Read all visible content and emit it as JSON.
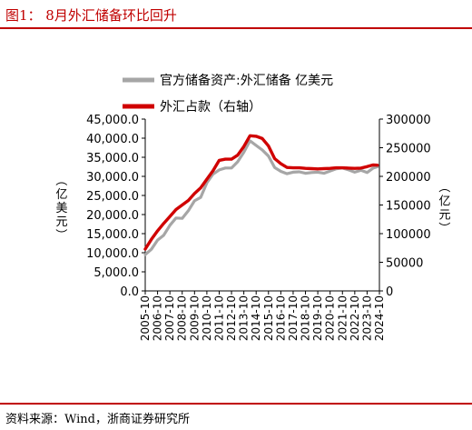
{
  "figure": {
    "title": "图1：  8月外汇储备环比回升",
    "source": "资料来源：Wind，浙商证券研究所"
  },
  "colors": {
    "accent": "#c00000",
    "reserves": "#a6a6a6",
    "position": "#d00000"
  },
  "chart_data": {
    "type": "line",
    "title": "",
    "legend_placement": "top",
    "grid": false,
    "x_ticks": [
      "2005-10",
      "2006-10",
      "2007-10",
      "2008-10",
      "2009-10",
      "2010-10",
      "2011-10",
      "2012-10",
      "2013-10",
      "2014-10",
      "2015-10",
      "2016-10",
      "2017-10",
      "2018-10",
      "2019-10",
      "2020-10",
      "2021-10",
      "2022-10",
      "2023-10",
      "2024-10"
    ],
    "x": [
      "2005-10",
      "2006-04",
      "2006-10",
      "2007-04",
      "2007-10",
      "2008-04",
      "2008-10",
      "2009-04",
      "2009-10",
      "2010-04",
      "2010-10",
      "2011-04",
      "2011-10",
      "2012-04",
      "2012-10",
      "2013-04",
      "2013-10",
      "2014-04",
      "2014-10",
      "2015-04",
      "2015-10",
      "2016-04",
      "2016-10",
      "2017-04",
      "2017-10",
      "2018-04",
      "2018-10",
      "2019-04",
      "2019-10",
      "2020-04",
      "2020-10",
      "2021-04",
      "2021-10",
      "2022-04",
      "2022-10",
      "2023-04",
      "2023-10",
      "2024-04",
      "2024-08"
    ],
    "left_axis": {
      "label": "（亿美元）",
      "ylim": [
        0,
        45000
      ],
      "ticks": [
        "0.0",
        "5,000.0",
        "10,000.0",
        "15,000.0",
        "20,000.0",
        "25,000.0",
        "30,000.0",
        "35,000.0",
        "40,000.0",
        "45,000.0"
      ]
    },
    "right_axis": {
      "label": "（亿元）",
      "ylim": [
        0,
        300000
      ],
      "ticks": [
        "0",
        "50000",
        "100000",
        "150000",
        "200000",
        "250000",
        "300000"
      ]
    },
    "series": [
      {
        "name": "官方储备资产:外汇储备 亿美元",
        "axis": "left",
        "color": "#a6a6a6",
        "values": [
          9500,
          10900,
          13300,
          14600,
          17200,
          19100,
          19000,
          21000,
          23600,
          24500,
          28300,
          30600,
          31700,
          32200,
          32200,
          33800,
          36300,
          39300,
          38100,
          36900,
          35300,
          32300,
          31300,
          30700,
          31100,
          31200,
          30800,
          31000,
          31100,
          30800,
          31400,
          32000,
          32200,
          31700,
          31100,
          31600,
          31000,
          32200,
          32500
        ]
      },
      {
        "name": "外汇占款（右轴）",
        "axis": "right",
        "color": "#d00000",
        "values": [
          73000,
          90000,
          105000,
          118000,
          130000,
          142000,
          150000,
          158000,
          170000,
          180000,
          195000,
          210000,
          228000,
          230000,
          230000,
          237000,
          252000,
          271000,
          270000,
          266000,
          253000,
          231000,
          222000,
          215500,
          215000,
          215000,
          214000,
          213500,
          213000,
          213500,
          214000,
          215000,
          215000,
          214500,
          214000,
          214500,
          217000,
          220000,
          219500
        ]
      }
    ]
  }
}
